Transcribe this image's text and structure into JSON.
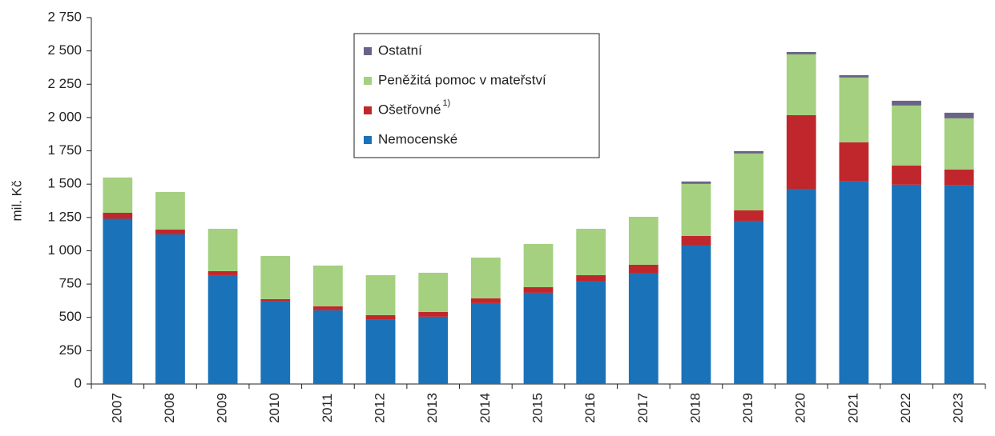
{
  "chart_data": {
    "type": "stacked-bar",
    "y_label": "mil. Kč",
    "categories": [
      "2007",
      "2008",
      "2009",
      "2010",
      "2011",
      "2012",
      "2013",
      "2014",
      "2015",
      "2016",
      "2017",
      "2018",
      "2019",
      "2020",
      "2021",
      "2022",
      "2023"
    ],
    "series": [
      {
        "name": "Nemocenské",
        "color": "#1a72b8",
        "values": [
          1240,
          1123,
          817,
          619,
          553,
          486,
          505,
          607,
          685,
          769,
          829,
          1039,
          1225,
          1465,
          1520,
          1496,
          1490
        ]
      },
      {
        "name": "Ošetřovné",
        "superscript": "1)",
        "color": "#c0272d",
        "values": [
          45,
          36,
          30,
          18,
          30,
          31,
          36,
          36,
          42,
          48,
          66,
          72,
          78,
          553,
          294,
          144,
          120
        ]
      },
      {
        "name": "Peněžitá pomoc v mateřství",
        "color": "#a4d07f",
        "values": [
          265,
          282,
          318,
          324,
          306,
          300,
          294,
          306,
          324,
          348,
          360,
          391,
          427,
          456,
          486,
          450,
          384
        ]
      },
      {
        "name": "Ostatní",
        "color": "#6a6389",
        "values": [
          0,
          0,
          0,
          0,
          0,
          0,
          0,
          0,
          0,
          0,
          0,
          18,
          18,
          18,
          18,
          36,
          42
        ]
      }
    ],
    "ylim": [
      0,
      2750
    ],
    "yticks": [
      0,
      250,
      500,
      750,
      {
        "value": 1000,
        "label": "1 000"
      },
      {
        "value": 1250,
        "label": "1 250"
      },
      {
        "value": 1500,
        "label": "1 500"
      },
      {
        "value": 1750,
        "label": "1 750"
      },
      {
        "value": 2000,
        "label": "2 000"
      },
      {
        "value": 2250,
        "label": "2 250"
      },
      {
        "value": 2500,
        "label": "2 500"
      },
      {
        "value": 2750,
        "label": "2 750"
      }
    ],
    "grid": false,
    "legend": "top-center"
  }
}
